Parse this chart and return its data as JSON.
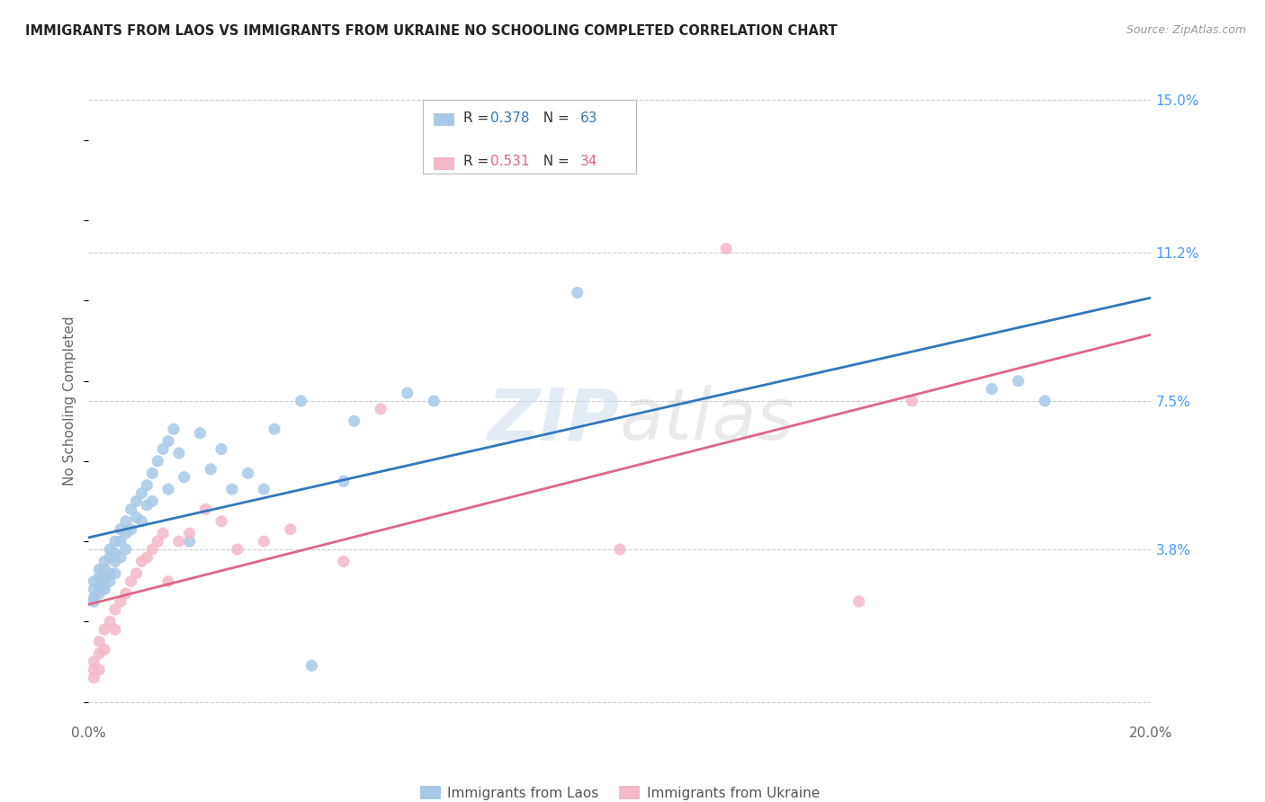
{
  "title": "IMMIGRANTS FROM LAOS VS IMMIGRANTS FROM UKRAINE NO SCHOOLING COMPLETED CORRELATION CHART",
  "source": "Source: ZipAtlas.com",
  "ylabel": "No Schooling Completed",
  "xlim": [
    0.0,
    0.2
  ],
  "ylim": [
    -0.005,
    0.155
  ],
  "xticks": [
    0.0,
    0.04,
    0.08,
    0.12,
    0.16,
    0.2
  ],
  "xtick_labels": [
    "0.0%",
    "",
    "",
    "",
    "",
    "20.0%"
  ],
  "yticks_right": [
    0.0,
    0.038,
    0.075,
    0.112,
    0.15
  ],
  "ytick_labels_right": [
    "",
    "3.8%",
    "7.5%",
    "11.2%",
    "15.0%"
  ],
  "laos_R": 0.378,
  "laos_N": 63,
  "ukraine_R": 0.531,
  "ukraine_N": 34,
  "laos_color": "#a8c8e8",
  "ukraine_color": "#f4b8c8",
  "laos_line_color": "#3377bb",
  "ukraine_line_color": "#dd6688",
  "background_color": "#ffffff",
  "grid_color": "#cccccc",
  "laos_x": [
    0.001,
    0.001,
    0.001,
    0.001,
    0.002,
    0.002,
    0.002,
    0.002,
    0.002,
    0.003,
    0.003,
    0.003,
    0.003,
    0.003,
    0.004,
    0.004,
    0.004,
    0.004,
    0.005,
    0.005,
    0.005,
    0.005,
    0.006,
    0.006,
    0.006,
    0.007,
    0.007,
    0.007,
    0.008,
    0.008,
    0.009,
    0.009,
    0.01,
    0.01,
    0.011,
    0.011,
    0.012,
    0.012,
    0.013,
    0.014,
    0.015,
    0.015,
    0.016,
    0.017,
    0.018,
    0.019,
    0.021,
    0.023,
    0.025,
    0.027,
    0.03,
    0.033,
    0.035,
    0.04,
    0.042,
    0.048,
    0.05,
    0.06,
    0.065,
    0.092,
    0.17,
    0.175,
    0.18
  ],
  "laos_y": [
    0.025,
    0.03,
    0.028,
    0.026,
    0.033,
    0.031,
    0.029,
    0.028,
    0.027,
    0.035,
    0.033,
    0.031,
    0.029,
    0.028,
    0.038,
    0.036,
    0.032,
    0.03,
    0.04,
    0.037,
    0.035,
    0.032,
    0.043,
    0.04,
    0.036,
    0.045,
    0.042,
    0.038,
    0.048,
    0.043,
    0.05,
    0.046,
    0.052,
    0.045,
    0.054,
    0.049,
    0.057,
    0.05,
    0.06,
    0.063,
    0.065,
    0.053,
    0.068,
    0.062,
    0.056,
    0.04,
    0.067,
    0.058,
    0.063,
    0.053,
    0.057,
    0.053,
    0.068,
    0.075,
    0.009,
    0.055,
    0.07,
    0.077,
    0.075,
    0.102,
    0.078,
    0.08,
    0.075
  ],
  "ukraine_x": [
    0.001,
    0.001,
    0.001,
    0.002,
    0.002,
    0.002,
    0.003,
    0.003,
    0.004,
    0.005,
    0.005,
    0.006,
    0.007,
    0.008,
    0.009,
    0.01,
    0.011,
    0.012,
    0.013,
    0.014,
    0.015,
    0.017,
    0.019,
    0.022,
    0.025,
    0.028,
    0.033,
    0.038,
    0.048,
    0.055,
    0.1,
    0.12,
    0.145,
    0.155
  ],
  "ukraine_y": [
    0.01,
    0.008,
    0.006,
    0.015,
    0.012,
    0.008,
    0.018,
    0.013,
    0.02,
    0.023,
    0.018,
    0.025,
    0.027,
    0.03,
    0.032,
    0.035,
    0.036,
    0.038,
    0.04,
    0.042,
    0.03,
    0.04,
    0.042,
    0.048,
    0.045,
    0.038,
    0.04,
    0.043,
    0.035,
    0.073,
    0.038,
    0.113,
    0.025,
    0.075
  ],
  "legend_items": [
    {
      "label": "R = 0.378   N = 63",
      "color": "#a8c8e8",
      "R": "0.378",
      "N": "63",
      "line_color": "#3377bb"
    },
    {
      "label": "R = 0.531   N = 34",
      "color": "#f4b8c8",
      "R": "0.531",
      "N": "34",
      "line_color": "#dd6688"
    }
  ]
}
